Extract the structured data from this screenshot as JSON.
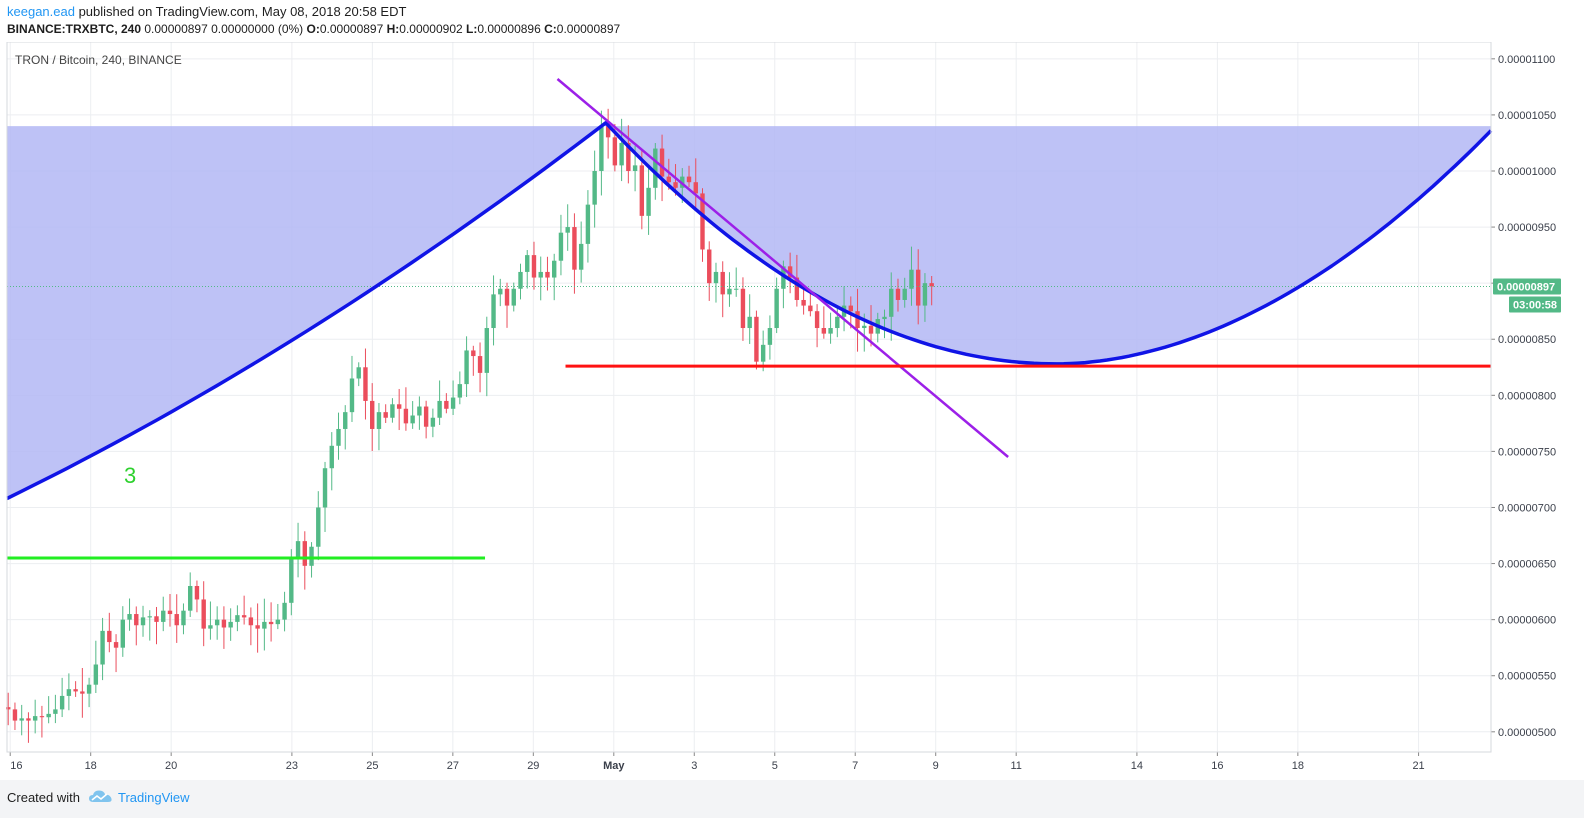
{
  "header": {
    "user": "keegan.ead",
    "published": "published on TradingView.com, May 08, 2018 20:58 EDT",
    "symbol_line": "BINANCE:TRXBTC, 240",
    "change": "0.00000897 0.00000000 (0%)",
    "o_label": "O:",
    "o_value": "0.00000897",
    "h_label": "H:",
    "h_value": "0.00000902",
    "l_label": "L:",
    "l_value": "0.00000896",
    "c_label": "C:",
    "c_value": "0.00000897"
  },
  "footer": {
    "created": "Created with",
    "brand": "TradingView"
  },
  "chart_data": {
    "type": "candlestick",
    "title": "TRON / Bitcoin, 240, BINANCE",
    "ylim": [
      4.82e-06,
      1.115e-05
    ],
    "y_ticks": [
      "0.00001100",
      "0.00001050",
      "0.00001000",
      "0.00000950",
      "0.00000900",
      "0.00000850",
      "0.00000800",
      "0.00000750",
      "0.00000700",
      "0.00000650",
      "0.00000600",
      "0.00000550",
      "0.00000500"
    ],
    "x_ticks": [
      {
        "label": "16",
        "day": 16
      },
      {
        "label": "18",
        "day": 18
      },
      {
        "label": "20",
        "day": 20
      },
      {
        "label": "23",
        "day": 23
      },
      {
        "label": "25",
        "day": 25
      },
      {
        "label": "27",
        "day": 27
      },
      {
        "label": "29",
        "day": 29
      },
      {
        "label": "May",
        "day": 31
      },
      {
        "label": "3",
        "day": 33
      },
      {
        "label": "5",
        "day": 35
      },
      {
        "label": "7",
        "day": 37
      },
      {
        "label": "9",
        "day": 39
      },
      {
        "label": "11",
        "day": 41
      },
      {
        "label": "14",
        "day": 44
      },
      {
        "label": "16",
        "day": 46
      },
      {
        "label": "18",
        "day": 48
      },
      {
        "label": "21",
        "day": 51
      }
    ],
    "x_range_days": [
      15.92,
      52.8
    ],
    "last_price": "0.00000897",
    "last_price_value": 8.97e-06,
    "countdown": "03:00:58",
    "colors": {
      "up": "#53b987",
      "down": "#eb4d5c",
      "fill": "#b3b7f5",
      "arc": "#1014e6",
      "trend": "#9c20e8",
      "support_red": "#ff1111",
      "support_green": "#22ee22",
      "label_green": "#2ed12e"
    },
    "annotation_text": "3",
    "candle_closes": [
      5.2,
      5.1,
      5.12,
      5.1,
      5.14,
      5.13,
      5.16,
      5.2,
      5.32,
      5.38,
      5.36,
      5.34,
      5.42,
      5.6,
      5.9,
      5.8,
      5.75,
      6.0,
      6.05,
      5.95,
      6.02,
      6.03,
      5.98,
      6.08,
      6.05,
      5.95,
      6.08,
      6.3,
      6.18,
      5.92,
      5.95,
      6.0,
      5.93,
      5.98,
      6.04,
      6.02,
      5.95,
      5.92,
      5.98,
      5.96,
      6.0,
      6.15,
      6.55,
      6.7,
      6.48,
      6.65,
      7.0,
      7.35,
      7.55,
      7.7,
      7.85,
      8.15,
      8.25,
      7.95,
      7.7,
      7.85,
      7.8,
      7.92,
      7.88,
      7.75,
      7.82,
      7.9,
      7.72,
      7.8,
      7.95,
      7.88,
      7.98,
      8.1,
      8.4,
      8.35,
      8.2,
      8.6,
      8.9,
      8.95,
      8.8,
      8.95,
      9.1,
      9.25,
      9.05,
      9.1,
      9.05,
      9.2,
      9.45,
      9.5,
      9.12,
      9.35,
      9.7,
      10.0,
      10.4,
      10.3,
      10.05,
      10.25,
      10.0,
      10.05,
      9.6,
      9.85,
      10.2,
      9.95,
      9.9,
      9.85,
      9.95,
      9.9,
      9.8,
      9.3,
      9.0,
      9.1,
      8.9,
      8.95,
      8.95,
      8.6,
      8.7,
      8.3,
      8.45,
      8.6,
      8.95,
      9.15,
      9.05,
      8.85,
      8.8,
      8.75,
      8.6,
      8.55,
      8.6,
      8.7,
      8.8,
      8.75,
      8.6,
      8.62,
      8.55,
      8.68,
      8.7,
      8.95,
      8.85,
      8.95,
      9.12,
      8.8,
      9.0,
      8.97
    ],
    "arc_points_days": [
      [
        15.92,
        7.08
      ],
      [
        30.8,
        10.43
      ],
      [
        42,
        8.28
      ],
      [
        52.8,
        10.36
      ]
    ],
    "arc_left_days": [
      [
        15.92,
        7.08
      ],
      [
        30.8,
        10.43
      ]
    ],
    "fill_top": 10.4,
    "red_support": {
      "value": 8.26,
      "from_day": 29.8,
      "to_day": 52.8
    },
    "green_support": {
      "value": 6.55,
      "from_day": 15.92,
      "to_day": 27.8
    },
    "trend_line": {
      "from": [
        29.6,
        10.82
      ],
      "to": [
        40.8,
        7.45
      ]
    }
  }
}
